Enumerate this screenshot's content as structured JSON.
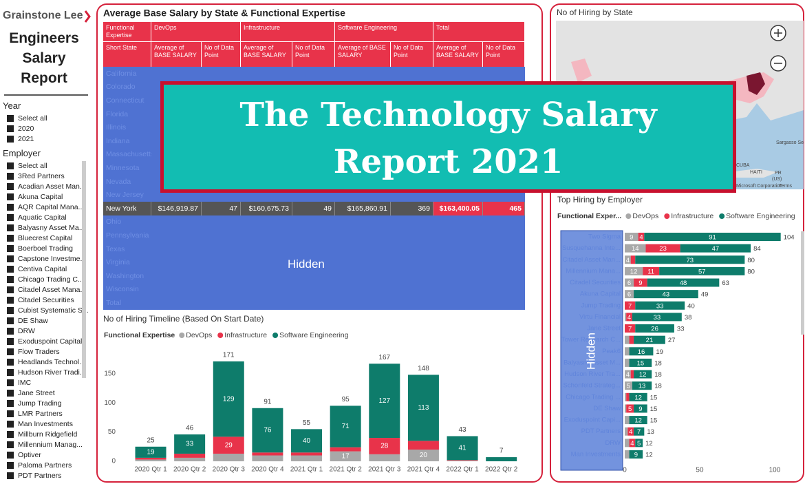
{
  "sidebar": {
    "logo": "Grainstone Lee",
    "title": [
      "Engineers",
      "Salary",
      "Report"
    ],
    "slicers": [
      {
        "title": "Year",
        "items": [
          "Select all",
          "2020",
          "2021"
        ]
      },
      {
        "title": "Employer",
        "items": [
          "Select all",
          "3Red Partners",
          "Acadian Asset Man...",
          "Akuna Capital",
          "AQR Capital Mana...",
          "Aquatic Capital",
          "Balyasny Asset Ma...",
          "Bluecrest Capital",
          "Boerboel Trading",
          "Capstone Investme...",
          "Centiva Capital",
          "Chicago Trading C...",
          "Citadel Asset Mana...",
          "Citadel Securities",
          "Cubist Systematic S...",
          "DE Shaw",
          "DRW",
          "Exoduspoint Capital",
          "Flow Traders",
          "Headlands Technol...",
          "Hudson River Tradi...",
          "IMC",
          "Jane Street",
          "Jump Trading",
          "LMR Partners",
          "Man Investments",
          "Millburn Ridgefield",
          "Millennium Manag...",
          "Optiver",
          "Paloma Partners",
          "PDT Partners"
        ]
      }
    ]
  },
  "table": {
    "title": "Average Base Salary by State & Functional Expertise",
    "header": [
      [
        "Functional Expertise",
        "DevOps",
        "Infrastructure",
        "Software Engineering",
        "Total"
      ],
      [
        "Short State",
        "Average of BASE SALARY",
        "No of Data Point",
        "Average of BASE SALARY",
        "No of Data Point",
        "Average of BASE SALARY",
        "No of Data Point",
        "Average of BASE SALARY",
        "No of Data Point"
      ]
    ],
    "rows": [
      [
        "California"
      ],
      [
        "Colorado"
      ],
      [
        "Connecticut"
      ],
      [
        "Florida"
      ],
      [
        "Illinois"
      ],
      [
        "Indiana"
      ],
      [
        "Massachusetts"
      ],
      [
        "Minnesota"
      ],
      [
        "Nevada"
      ],
      [
        "New Jersey"
      ],
      [
        "New York",
        "$146,919.87",
        47,
        "$160,675.73",
        49,
        "$165,860.91",
        369,
        "$163,400.05",
        465
      ],
      [
        "Ohio"
      ],
      [
        "Pennsylvania"
      ],
      [
        "Texas"
      ],
      [
        "Virginia"
      ],
      [
        "Washington"
      ],
      [
        "Wisconsin"
      ],
      [
        "Total"
      ]
    ],
    "overlay_label": "Hidden"
  },
  "banner": [
    "The Technology Salary",
    "Report 2021"
  ],
  "map": {
    "title": "No of Hiring by State",
    "labels": [
      "Sargasso Se",
      "CUBA",
      "HAITI",
      "PR",
      "(US)",
      "Microsoft Corporation",
      "Terms"
    ]
  },
  "chart_data": [
    {
      "type": "stacked_bar",
      "title": "No of Hiring Timeline (Based On Start Date)",
      "legend_title": "Functional Expertise",
      "categories": [
        "2020 Qtr 1",
        "2020 Qtr 2",
        "2020 Qtr 3",
        "2020 Qtr 4",
        "2021 Qtr 1",
        "2021 Qtr 2",
        "2021 Qtr 3",
        "2021 Qtr 4",
        "2022 Qtr 1",
        "2022 Qtr 2"
      ],
      "series": [
        {
          "name": "DevOps",
          "color": "#a8a8a8",
          "values": [
            3,
            6,
            13,
            10,
            10,
            17,
            12,
            20,
            1,
            0
          ]
        },
        {
          "name": "Infrastructure",
          "color": "#e8334a",
          "values": [
            3,
            7,
            29,
            5,
            5,
            7,
            28,
            15,
            1,
            0
          ]
        },
        {
          "name": "Software Engineering",
          "color": "#0e7c6b",
          "values": [
            19,
            33,
            129,
            76,
            40,
            71,
            127,
            113,
            41,
            7
          ]
        }
      ],
      "totals": [
        25,
        46,
        171,
        91,
        55,
        95,
        167,
        148,
        43,
        7
      ],
      "ylim": [
        0,
        185
      ],
      "yticks": [
        0,
        50,
        100,
        150
      ]
    },
    {
      "type": "stacked_barh",
      "title": "Top Hiring by Employer",
      "legend_title": "Functional Exper...",
      "categories": [
        "Two Sigma",
        "Susquehanna Inte...",
        "Citadel Asset Man...",
        "Millennium Mana...",
        "Citadel Securities",
        "Akuna Capital",
        "Jump Trading",
        "Virtu Financial",
        "Jane Street",
        "Tower Research C...",
        "Peak6",
        "Balyasny Asset M...",
        "Hudson River Tra...",
        "Schonfeld Strateg...",
        "Chicago Trading ...",
        "DE Shaw",
        "Exoduspoint Capi...",
        "PDT Partners",
        "DRW",
        "Man Investments"
      ],
      "series": [
        {
          "name": "DevOps",
          "color": "#a8a8a8",
          "values": [
            9,
            14,
            4,
            12,
            6,
            6,
            0,
            1,
            0,
            3,
            3,
            3,
            4,
            5,
            1,
            1,
            3,
            2,
            3,
            3
          ]
        },
        {
          "name": "Infrastructure",
          "color": "#e8334a",
          "values": [
            4,
            23,
            3,
            11,
            9,
            0,
            7,
            4,
            7,
            3,
            0,
            0,
            2,
            0,
            2,
            5,
            0,
            4,
            4,
            0
          ]
        },
        {
          "name": "Software Engineering",
          "color": "#0e7c6b",
          "values": [
            91,
            47,
            73,
            57,
            48,
            43,
            33,
            33,
            26,
            21,
            16,
            15,
            12,
            13,
            12,
            9,
            12,
            7,
            5,
            9
          ]
        }
      ],
      "totals": [
        104,
        84,
        80,
        80,
        63,
        49,
        40,
        38,
        33,
        27,
        19,
        18,
        18,
        18,
        15,
        15,
        15,
        13,
        12,
        12
      ],
      "xlim": [
        0,
        108
      ],
      "xticks": [
        0,
        50,
        100
      ],
      "overlay_label": "Hidden"
    }
  ]
}
